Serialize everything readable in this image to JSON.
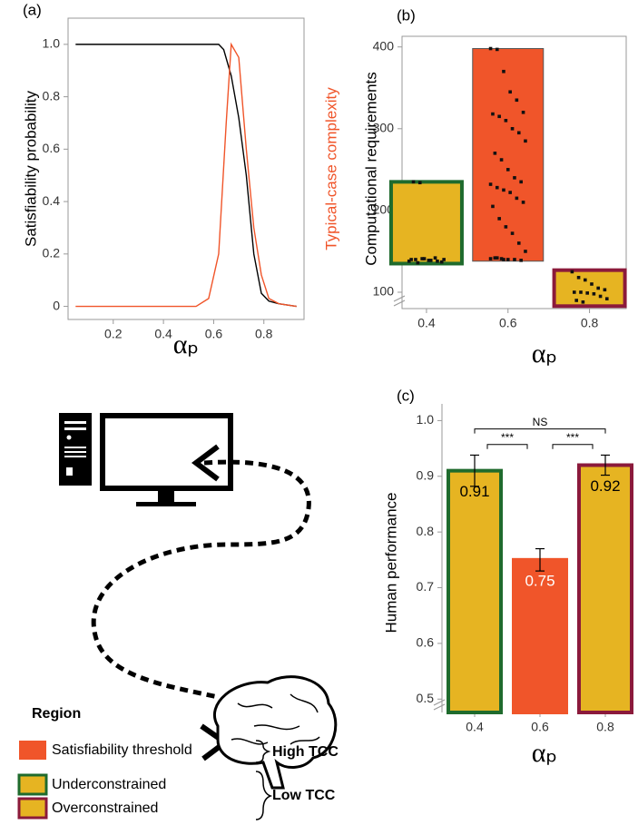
{
  "chart_data": [
    {
      "type": "line",
      "title": "(a)",
      "xlabel": "αₚ",
      "ylabel": "Satisfiability probability",
      "y2label": "Typical-case complexity",
      "xlim": [
        0.02,
        0.96
      ],
      "xticks": [
        0.2,
        0.4,
        0.6,
        0.8
      ],
      "ylim": [
        -0.05,
        1.1
      ],
      "yticks": [
        {
          "value": 1,
          "label": "1.0"
        },
        0.8,
        0.6,
        0.4,
        0.2,
        0
      ],
      "series": [
        {
          "name": "Satisfiability probability",
          "color": "#000000",
          "x": [
            0.05,
            0.2,
            0.4,
            0.62,
            0.64,
            0.67,
            0.7,
            0.73,
            0.76,
            0.79,
            0.82,
            0.86,
            0.93
          ],
          "values": [
            1,
            1,
            1,
            1,
            0.98,
            0.88,
            0.72,
            0.5,
            0.2,
            0.05,
            0.02,
            0.01,
            0
          ]
        },
        {
          "name": "Typical-case complexity",
          "color": "#f0552a",
          "x": [
            0.05,
            0.3,
            0.53,
            0.58,
            0.62,
            0.65,
            0.67,
            0.7,
            0.73,
            0.76,
            0.79,
            0.82,
            0.86,
            0.93
          ],
          "values": [
            0,
            0,
            0,
            0.03,
            0.2,
            0.7,
            1,
            0.95,
            0.6,
            0.3,
            0.12,
            0.03,
            0.01,
            0
          ]
        }
      ]
    },
    {
      "type": "range_bar",
      "title": "(b)",
      "xlabel": "αₚ",
      "ylabel": "Computational requirements",
      "xlim": [
        0.34,
        0.89
      ],
      "xticks": [
        0.4,
        0.6,
        0.8
      ],
      "ylim": [
        80,
        413
      ],
      "yticks": [
        100,
        200,
        300,
        400
      ],
      "x": [
        0.4,
        0.6,
        0.8
      ],
      "low": [
        135,
        138,
        83
      ],
      "high": [
        235,
        398,
        127
      ],
      "colors": [
        "#e6b422",
        "#f0552a",
        "#e6b422"
      ],
      "edgecolors": [
        "#1f6b2d",
        "#555555",
        "#8b1a3b"
      ],
      "points": [
        [
          138,
          140,
          141,
          139,
          142,
          137,
          140,
          136,
          141,
          139,
          138,
          140,
          235,
          234
        ],
        [
          398,
          397,
          370,
          345,
          335,
          320,
          318,
          315,
          310,
          300,
          295,
          285,
          270,
          262,
          250,
          240,
          235,
          232,
          228,
          225,
          222,
          215,
          210,
          205,
          190,
          180,
          172,
          160,
          150,
          142,
          141,
          140,
          140,
          139,
          141,
          142,
          140
        ],
        [
          125,
          118,
          115,
          110,
          105,
          103,
          100,
          100,
          99,
          98,
          95,
          92,
          90,
          88
        ]
      ]
    },
    {
      "type": "bar",
      "title": "(c)",
      "xlabel": "αₚ",
      "ylabel": "Human performance",
      "xlim": [
        0.3,
        0.9
      ],
      "xticks": [
        0.4,
        0.6,
        0.8
      ],
      "ylim": [
        0.476,
        1.03
      ],
      "yticks": [
        0.5,
        0.6,
        0.7,
        0.8,
        0.9,
        {
          "value": 1,
          "label": "1.0"
        }
      ],
      "x": [
        0.4,
        0.6,
        0.8
      ],
      "values": [
        0.91,
        0.75,
        0.92
      ],
      "errors": [
        0.028,
        0.02,
        0.018
      ],
      "colors": [
        "#e6b422",
        "#f0552a",
        "#e6b422"
      ],
      "edgecolors": [
        "#1f6b2d",
        "#f0552a",
        "#8b1a3b"
      ],
      "label_colors": [
        "#000000",
        "#ffffff",
        "#000000"
      ],
      "annotations": [
        "NS",
        "***",
        "***"
      ]
    }
  ],
  "legend": {
    "title": "Region",
    "entries": [
      {
        "name": "Satisfiability threshold",
        "color": "#f0552a",
        "edgecolor": "#f0552a"
      },
      {
        "name": "Underconstrained",
        "color": "#e6b422",
        "edgecolor": "#1f6b2d"
      },
      {
        "name": "Overconstrained",
        "color": "#e6b422",
        "edgecolor": "#8b1a3b"
      }
    ],
    "groups": [
      "High TCC",
      "Low TCC"
    ]
  }
}
